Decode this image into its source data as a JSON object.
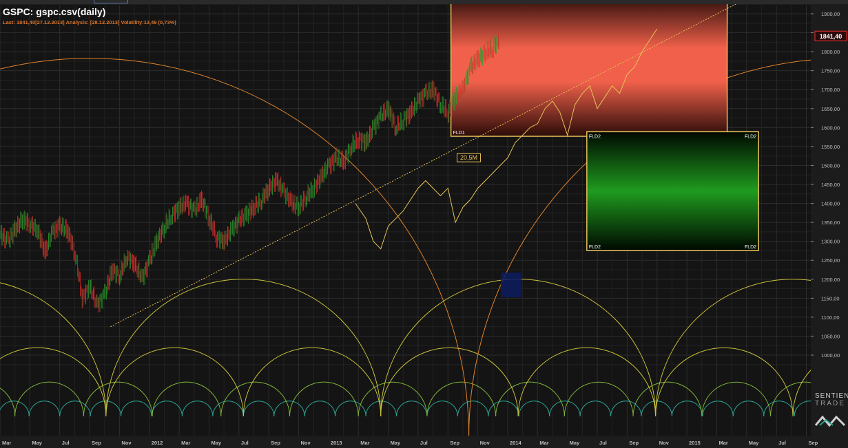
{
  "header": {
    "title": "GSPC: gspc.csv(daily)",
    "subtitle": "Last: 1841,40[27.12.2013] Analysis: [28.12.2013] Volatility:13,49 (0,73%)"
  },
  "price_label": "1841,40",
  "annotations": {
    "cycle_label": "20,5M",
    "fld1": "FLD1",
    "fld2": "FLD2"
  },
  "logo": {
    "line1": "SENTIEN",
    "line2": "TRADE"
  },
  "colors": {
    "background": "#141414",
    "grid": "#2c2c2c",
    "candle_up": "#2e9a2e",
    "candle_down": "#d42a2a",
    "fld_line": "#e8c25a",
    "trend_line": "#e8c25a",
    "projection_box_border": "#e8c25a",
    "projection_up": "#f0604a",
    "projection_down": "#1f9b1f",
    "cycle_large": "#e0832a",
    "cycle_mid": "#c8c03a",
    "cycle_small": "#7fb33a",
    "cycle_tiny": "#2aa090",
    "price_marker": "#d42a2a"
  },
  "chart_data": {
    "type": "line",
    "title": "GSPC: gspc.csv(daily)",
    "y_axis": {
      "ticks": [
        1900,
        1850,
        1800,
        1750,
        1700,
        1650,
        1600,
        1550,
        1500,
        1450,
        1400,
        1350,
        1300,
        1250,
        1200,
        1150,
        1100,
        1050,
        1000
      ],
      "tick_labels": [
        "1900,00",
        "1850,00",
        "1800,00",
        "1750,00",
        "1700,00",
        "1650,00",
        "1600,00",
        "1550,00",
        "1500,00",
        "1450,00",
        "1400,00",
        "1350,00",
        "1300,00",
        "1250,00",
        "1200,00",
        "1150,00",
        "1100,00",
        "1050,00",
        "1000,00"
      ],
      "range": [
        950,
        1935
      ],
      "position": "right"
    },
    "x_axis": {
      "tick_labels": [
        "Mar",
        "May",
        "Jul",
        "Sep",
        "Nov",
        "2012",
        "Mar",
        "May",
        "Jul",
        "Sep",
        "Nov",
        "2013",
        "Mar",
        "May",
        "Jul",
        "Sep",
        "Nov",
        "2014",
        "Mar",
        "May",
        "Jul",
        "Sep",
        "Nov",
        "2015",
        "Mar",
        "May",
        "Jul",
        "Sep"
      ],
      "tick_months": [
        0,
        2,
        4,
        6,
        8,
        10,
        12,
        14,
        16,
        18,
        20,
        22,
        24,
        26,
        28,
        30,
        32,
        34,
        36,
        38,
        40,
        42,
        44,
        46,
        48,
        50,
        52,
        54
      ],
      "month_zero": "Mar 2011",
      "range_months": [
        0,
        54.3
      ]
    },
    "grid": true,
    "series": [
      {
        "name": "GSPC",
        "style": "candles",
        "x": [
          0,
          0.5,
          1,
          1.5,
          2,
          2.5,
          3,
          3.5,
          4,
          4.5,
          5,
          5.5,
          6,
          6.5,
          7,
          7.5,
          8,
          8.5,
          9,
          9.5,
          10,
          10.5,
          11,
          11.5,
          12,
          12.5,
          13,
          13.5,
          14,
          14.5,
          15,
          15.5,
          16,
          16.5,
          17,
          17.5,
          18,
          18.5,
          19,
          19.5,
          20,
          20.5,
          21,
          21.5,
          22,
          22.5,
          23,
          23.5,
          24,
          24.5,
          25,
          25.5,
          26,
          26.5,
          27,
          27.5,
          28,
          28.5,
          29,
          29.5,
          30,
          30.5,
          31,
          31.5,
          32,
          32.5,
          33,
          33.5
        ],
        "y": [
          1320,
          1300,
          1330,
          1360,
          1345,
          1330,
          1270,
          1325,
          1340,
          1330,
          1270,
          1150,
          1180,
          1130,
          1160,
          1225,
          1210,
          1260,
          1240,
          1200,
          1250,
          1300,
          1340,
          1370,
          1390,
          1400,
          1380,
          1410,
          1360,
          1310,
          1300,
          1330,
          1355,
          1370,
          1390,
          1410,
          1440,
          1460,
          1430,
          1400,
          1390,
          1420,
          1440,
          1470,
          1500,
          1520,
          1510,
          1550,
          1570,
          1560,
          1600,
          1630,
          1650,
          1600,
          1620,
          1640,
          1670,
          1690,
          1700,
          1660,
          1640,
          1680,
          1700,
          1760,
          1780,
          1800,
          1810,
          1841.4
        ]
      },
      {
        "name": "FLD1",
        "style": "line",
        "x": [
          23.8,
          24.5,
          25,
          25.5,
          26,
          26.5,
          27,
          27.5,
          28,
          28.5,
          29,
          29.5,
          30,
          30.5,
          31,
          31.5,
          32,
          32.5,
          33,
          33.5,
          34,
          34.5,
          35,
          35.5,
          36,
          36.5,
          37,
          37.5,
          38,
          38.5,
          39,
          39.5,
          40,
          40.5,
          41,
          41.5,
          42,
          42.5,
          43,
          43.5,
          44
        ],
        "y": [
          1400,
          1360,
          1300,
          1280,
          1340,
          1360,
          1380,
          1410,
          1440,
          1460,
          1440,
          1420,
          1440,
          1350,
          1390,
          1410,
          1440,
          1460,
          1480,
          1500,
          1520,
          1560,
          1580,
          1600,
          1610,
          1650,
          1670,
          1640,
          1580,
          1660,
          1690,
          1710,
          1650,
          1680,
          1710,
          1690,
          1740,
          1760,
          1800,
          1830,
          1860
        ]
      }
    ],
    "trend_line": {
      "x": [
        7.4,
        49.5
      ],
      "y": [
        1075,
        1930
      ]
    },
    "projection_boxes": [
      {
        "label": "FLD1",
        "months": [
          30.2,
          48.7
        ],
        "y_range": [
          1577,
          1935
        ],
        "direction": "up"
      },
      {
        "label": "FLD2",
        "months": [
          39.3,
          50.8
        ],
        "y_range": [
          1276,
          1589
        ],
        "direction": "down"
      }
    ],
    "cycle_labels": [
      {
        "text": "20,5M",
        "x_month": 30.7,
        "y": 1515
      }
    ],
    "cycle_troughs_months": [
      7.1,
      25.5,
      31.4,
      45.8
    ]
  }
}
